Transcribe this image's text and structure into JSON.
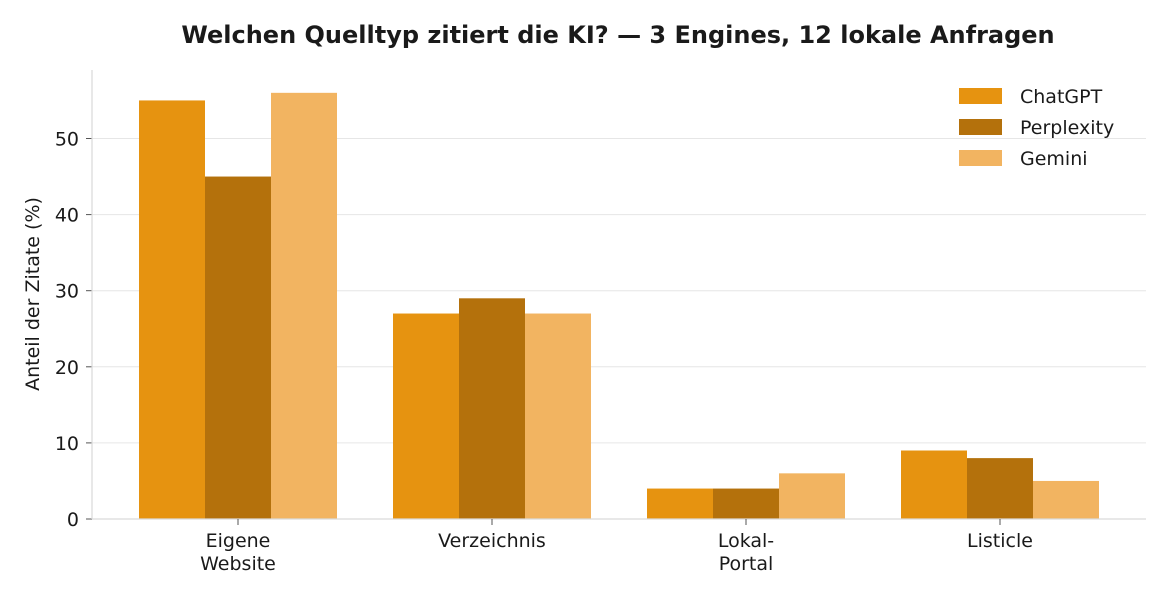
{
  "chart_data": {
    "type": "bar",
    "title": "Welchen Quelltyp zitiert die KI? — 3 Engines, 12 lokale Anfragen",
    "xlabel": "",
    "ylabel": "Anteil der Zitate (%)",
    "categories": [
      [
        "Eigene",
        "Website"
      ],
      [
        "Verzeichnis"
      ],
      [
        "Lokal-",
        "Portal"
      ],
      [
        "Listicle"
      ]
    ],
    "ylim": [
      0,
      59
    ],
    "yticks": [
      0,
      10,
      20,
      30,
      40,
      50
    ],
    "grid": "horizontal",
    "legend_position": "top-right",
    "series": [
      {
        "name": "ChatGPT",
        "color": "#e69310",
        "values": [
          55,
          27,
          4,
          9
        ]
      },
      {
        "name": "Perplexity",
        "color": "#b4710c",
        "values": [
          45,
          29,
          4,
          8
        ]
      },
      {
        "name": "Gemini",
        "color": "#f2b461",
        "values": [
          56,
          27,
          6,
          5
        ]
      }
    ]
  }
}
